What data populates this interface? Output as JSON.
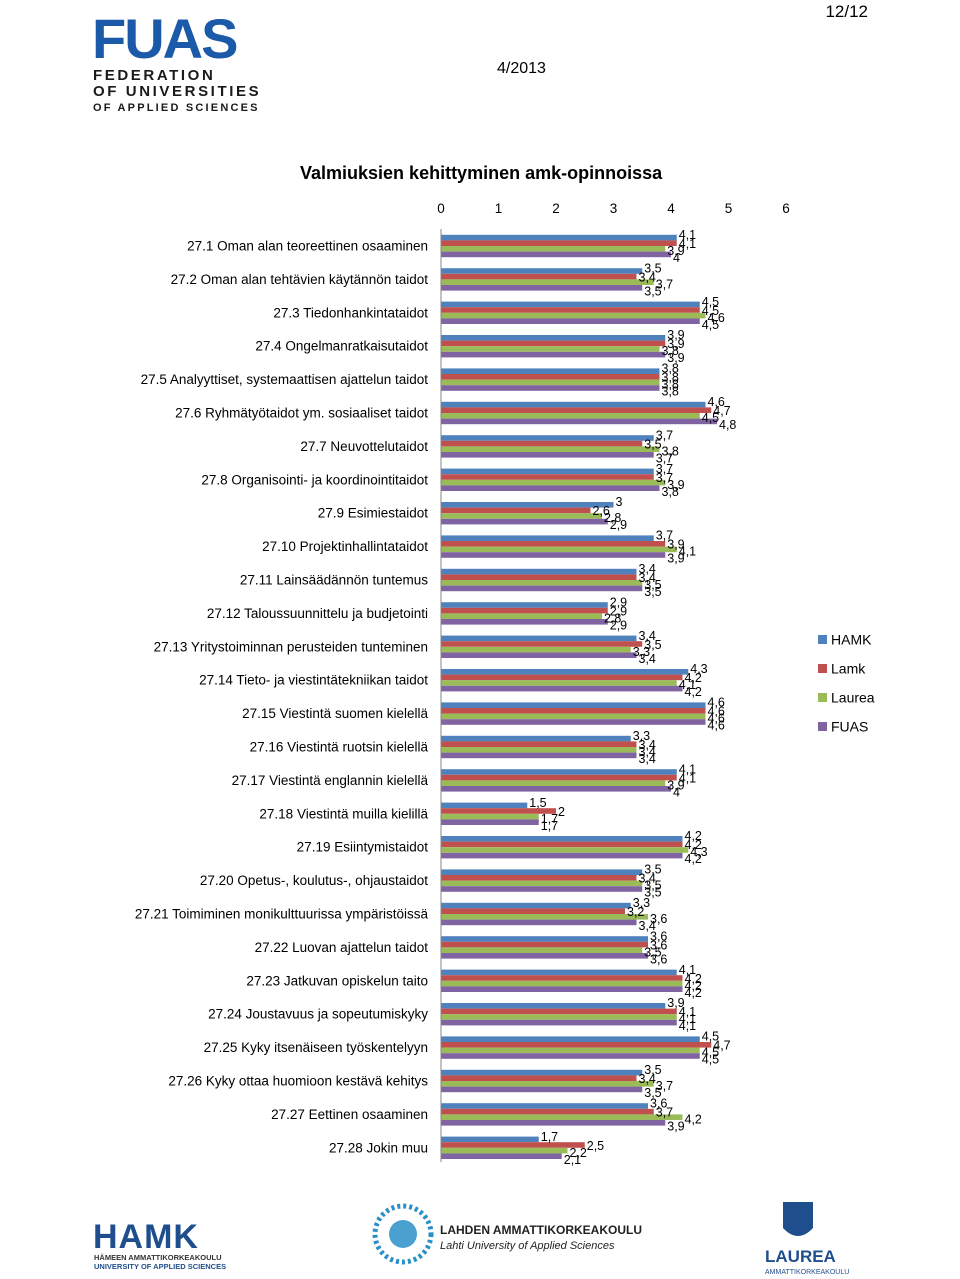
{
  "header": {
    "page_number": "12/12",
    "date": "4/2013",
    "logo": {
      "name": "FUAS",
      "line1": "FEDERATION",
      "line2": "OF UNIVERSITIES",
      "line3": "OF APPLIED SCIENCES"
    }
  },
  "footer": {
    "logos": [
      {
        "name": "HAMK",
        "line1": "HÄMEEN AMMATTIKORKEAKOULU",
        "line2": "UNIVERSITY OF APPLIED SCIENCES"
      },
      {
        "name": "LAHDEN AMMATTIKORKEAKOULU",
        "line1": "Lahti University of Applied Sciences"
      },
      {
        "name": "LAUREA",
        "line1": "AMMATTIKORKEAKOULU"
      }
    ]
  },
  "colors": {
    "HAMK": "#4f81bd",
    "Lamk": "#c0504d",
    "Laurea": "#9bbb59",
    "FUAS": "#8064a2"
  },
  "chart_data": {
    "type": "bar",
    "orientation": "horizontal",
    "title": "Valmiuksien kehittyminen amk-opinnoissa",
    "xlim": [
      0,
      6
    ],
    "x_ticks": [
      "0",
      "1",
      "2",
      "3",
      "4",
      "5",
      "6"
    ],
    "legend_position": "right",
    "grid": false,
    "categories": [
      "27.1 Oman alan teoreettinen osaaminen",
      "27.2 Oman alan tehtävien käytännön taidot",
      "27.3 Tiedonhankintataidot",
      "27.4 Ongelmanratkaisutaidot",
      "27.5 Analyyttiset, systemaattisen ajattelun taidot",
      "27.6 Ryhmätyötaidot ym. sosiaaliset taidot",
      "27.7 Neuvottelutaidot",
      "27.8 Organisointi- ja koordinointitaidot",
      "27.9 Esimiestaidot",
      "27.10 Projektinhallintataidot",
      "27.11 Lainsäädännön tuntemus",
      "27.12 Taloussuunnittelu ja budjetointi",
      "27.13 Yritystoiminnan perusteiden tunteminen",
      "27.14 Tieto- ja viestintätekniikan taidot",
      "27.15 Viestintä suomen kielellä",
      "27.16 Viestintä ruotsin kielellä",
      "27.17 Viestintä englannin kielellä",
      "27.18 Viestintä muilla kielillä",
      "27.19 Esiintymistaidot",
      "27.20 Opetus-, koulutus-, ohjaustaidot",
      "27.21 Toimiminen monikulttuurissa ympäristöissä",
      "27.22 Luovan ajattelun taidot",
      "27.23 Jatkuvan opiskelun taito",
      "27.24 Joustavuus ja sopeutumiskyky",
      "27.25 Kyky itsenäiseen työskentelyyn",
      "27.26 Kyky ottaa huomioon kestävä kehitys",
      "27.27 Eettinen osaaminen",
      "27.28 Jokin muu"
    ],
    "series": [
      {
        "name": "HAMK",
        "values": [
          4.1,
          3.5,
          4.5,
          3.9,
          3.8,
          4.6,
          3.7,
          3.7,
          3.0,
          3.7,
          3.4,
          2.9,
          3.4,
          4.3,
          4.6,
          3.3,
          4.1,
          1.5,
          4.2,
          3.5,
          3.3,
          3.6,
          4.1,
          3.9,
          4.5,
          3.5,
          3.6,
          1.7
        ]
      },
      {
        "name": "Lamk",
        "values": [
          4.1,
          3.4,
          4.5,
          3.9,
          3.8,
          4.7,
          3.5,
          3.7,
          2.6,
          3.9,
          3.4,
          2.9,
          3.5,
          4.2,
          4.6,
          3.4,
          4.1,
          2.0,
          4.2,
          3.4,
          3.2,
          3.6,
          4.2,
          4.1,
          4.7,
          3.4,
          3.7,
          2.5
        ]
      },
      {
        "name": "Laurea",
        "values": [
          3.9,
          3.7,
          4.6,
          3.8,
          3.8,
          4.5,
          3.8,
          3.9,
          2.8,
          4.1,
          3.5,
          2.8,
          3.3,
          4.1,
          4.6,
          3.4,
          3.9,
          1.7,
          4.3,
          3.5,
          3.6,
          3.5,
          4.2,
          4.1,
          4.5,
          3.7,
          4.2,
          2.2
        ]
      },
      {
        "name": "FUAS",
        "values": [
          4.0,
          3.5,
          4.5,
          3.9,
          3.8,
          4.8,
          3.7,
          3.8,
          2.9,
          3.9,
          3.5,
          2.9,
          3.4,
          4.2,
          4.6,
          3.4,
          4.0,
          1.7,
          4.2,
          3.5,
          3.4,
          3.6,
          4.2,
          4.1,
          4.5,
          3.5,
          3.9,
          2.1
        ]
      }
    ]
  }
}
